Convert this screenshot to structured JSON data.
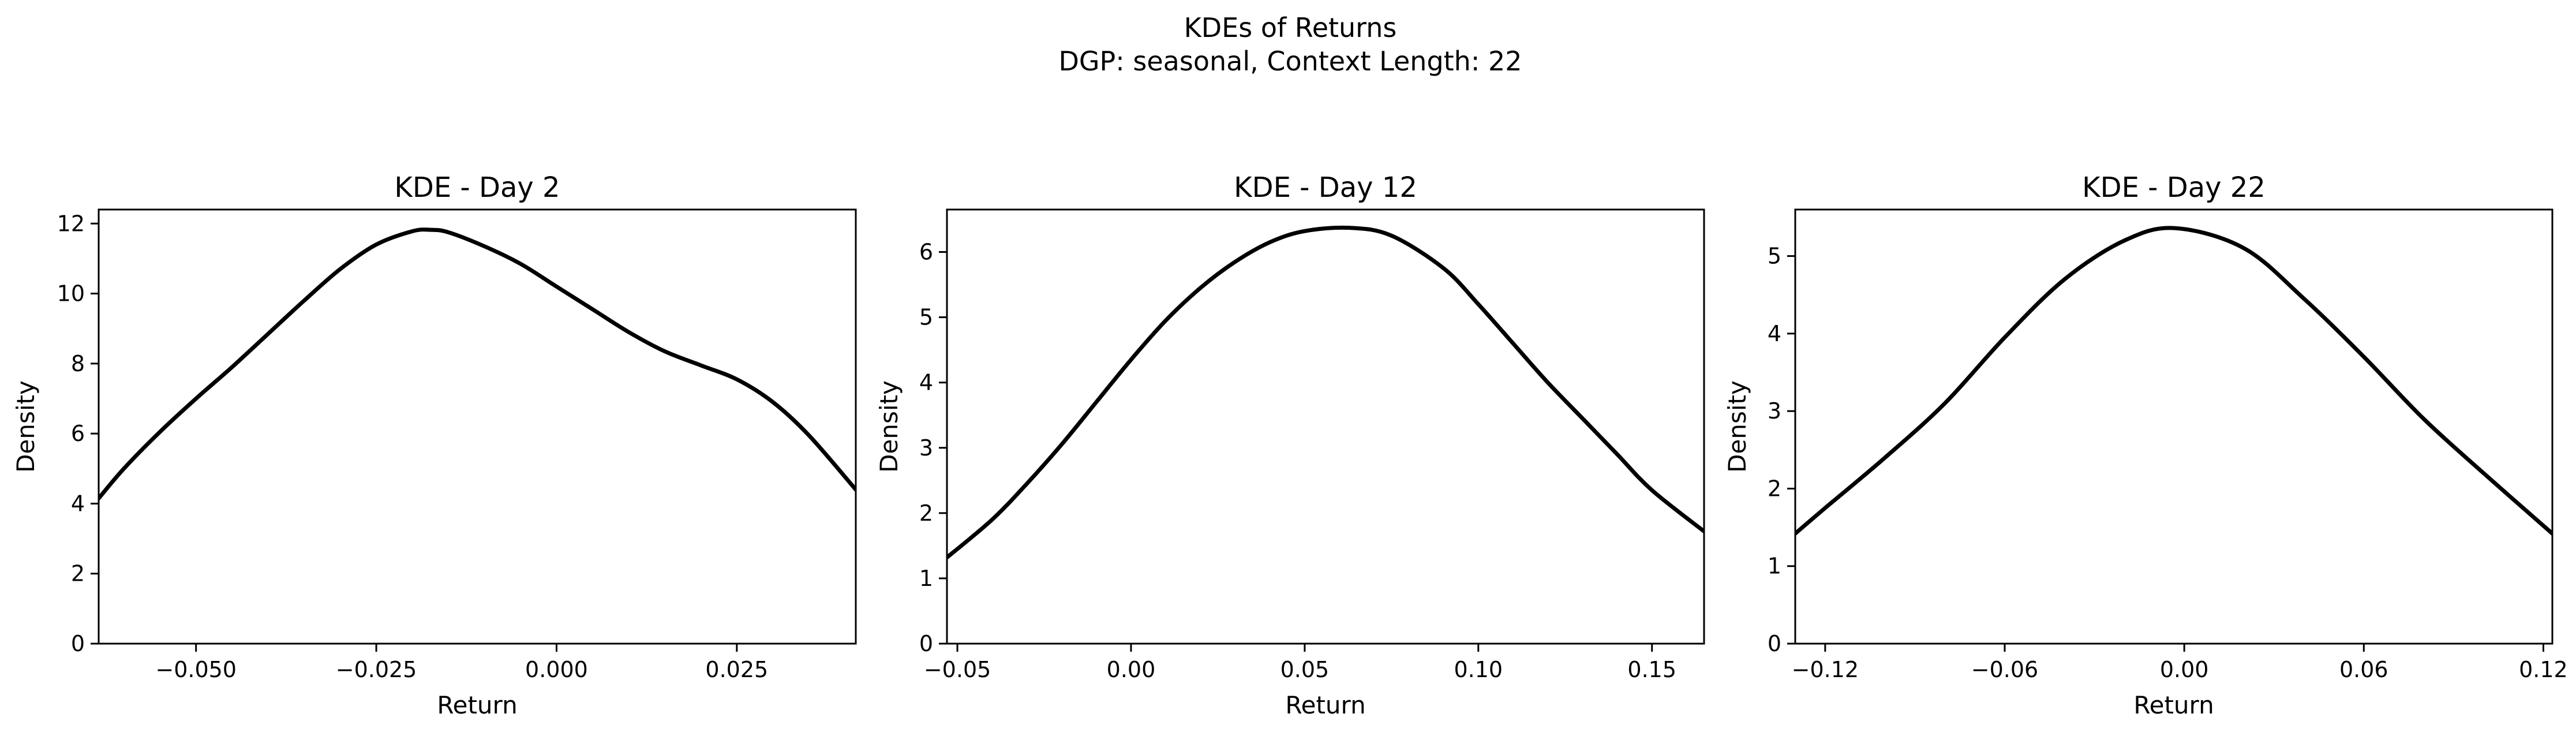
{
  "figure": {
    "title_line1": "KDEs of Returns",
    "title_line2": "DGP: seasonal, Context Length: 22"
  },
  "chart_data": [
    {
      "type": "line",
      "title": "KDE - Day 2",
      "xlabel": "Return",
      "ylabel": "Density",
      "xlim": [
        -0.0635,
        0.0415
      ],
      "ylim": [
        0,
        12.4
      ],
      "xticks": [
        {
          "value": -0.05,
          "label": "−0.050"
        },
        {
          "value": -0.025,
          "label": "−0.025"
        },
        {
          "value": 0.0,
          "label": "0.000"
        },
        {
          "value": 0.025,
          "label": "0.025"
        }
      ],
      "yticks": [
        {
          "value": 0,
          "label": "0"
        },
        {
          "value": 2,
          "label": "2"
        },
        {
          "value": 4,
          "label": "4"
        },
        {
          "value": 6,
          "label": "6"
        },
        {
          "value": 8,
          "label": "8"
        },
        {
          "value": 10,
          "label": "10"
        },
        {
          "value": 12,
          "label": "12"
        }
      ],
      "grid": false,
      "color": "#000000",
      "series": [
        {
          "x": [
            -0.0635,
            -0.06,
            -0.055,
            -0.05,
            -0.045,
            -0.04,
            -0.035,
            -0.03,
            -0.025,
            -0.02,
            -0.0175,
            -0.015,
            -0.01,
            -0.005,
            0.0,
            0.005,
            0.01,
            0.015,
            0.02,
            0.025,
            0.03,
            0.035,
            0.0415
          ],
          "y": [
            4.15,
            5.0,
            6.05,
            7.0,
            7.9,
            8.85,
            9.8,
            10.7,
            11.4,
            11.78,
            11.82,
            11.75,
            11.35,
            10.85,
            10.2,
            9.55,
            8.9,
            8.35,
            7.95,
            7.55,
            6.9,
            5.95,
            4.4
          ]
        }
      ]
    },
    {
      "type": "line",
      "title": "KDE - Day 12",
      "xlabel": "Return",
      "ylabel": "Density",
      "xlim": [
        -0.053,
        0.165
      ],
      "ylim": [
        0,
        6.65
      ],
      "xticks": [
        {
          "value": -0.05,
          "label": "−0.05"
        },
        {
          "value": 0.0,
          "label": "0.00"
        },
        {
          "value": 0.05,
          "label": "0.05"
        },
        {
          "value": 0.1,
          "label": "0.10"
        },
        {
          "value": 0.15,
          "label": "0.15"
        }
      ],
      "yticks": [
        {
          "value": 0,
          "label": "0"
        },
        {
          "value": 1,
          "label": "1"
        },
        {
          "value": 2,
          "label": "2"
        },
        {
          "value": 3,
          "label": "3"
        },
        {
          "value": 4,
          "label": "4"
        },
        {
          "value": 5,
          "label": "5"
        },
        {
          "value": 6,
          "label": "6"
        }
      ],
      "grid": false,
      "color": "#000000",
      "series": [
        {
          "x": [
            -0.053,
            -0.04,
            -0.03,
            -0.02,
            -0.01,
            0.0,
            0.01,
            0.02,
            0.03,
            0.04,
            0.05,
            0.063,
            0.075,
            0.09,
            0.1,
            0.11,
            0.12,
            0.13,
            0.14,
            0.15,
            0.165
          ],
          "y": [
            1.32,
            1.9,
            2.45,
            3.05,
            3.7,
            4.35,
            4.95,
            5.45,
            5.85,
            6.15,
            6.32,
            6.37,
            6.25,
            5.75,
            5.2,
            4.6,
            4.0,
            3.45,
            2.9,
            2.35,
            1.72
          ]
        }
      ]
    },
    {
      "type": "line",
      "title": "KDE - Day 22",
      "xlabel": "Return",
      "ylabel": "Density",
      "xlim": [
        -0.13,
        0.123
      ],
      "ylim": [
        0,
        5.6
      ],
      "xticks": [
        {
          "value": -0.12,
          "label": "−0.12"
        },
        {
          "value": -0.06,
          "label": "−0.06"
        },
        {
          "value": 0.0,
          "label": "0.00"
        },
        {
          "value": 0.06,
          "label": "0.06"
        },
        {
          "value": 0.12,
          "label": "0.12"
        }
      ],
      "yticks": [
        {
          "value": 0,
          "label": "0"
        },
        {
          "value": 1,
          "label": "1"
        },
        {
          "value": 2,
          "label": "2"
        },
        {
          "value": 3,
          "label": "3"
        },
        {
          "value": 4,
          "label": "4"
        },
        {
          "value": 5,
          "label": "5"
        }
      ],
      "grid": false,
      "color": "#000000",
      "series": [
        {
          "x": [
            -0.13,
            -0.12,
            -0.1,
            -0.08,
            -0.06,
            -0.04,
            -0.02,
            -0.003,
            0.02,
            0.04,
            0.06,
            0.08,
            0.1,
            0.123
          ],
          "y": [
            1.42,
            1.75,
            2.4,
            3.1,
            3.95,
            4.7,
            5.2,
            5.36,
            5.1,
            4.45,
            3.7,
            2.9,
            2.2,
            1.42
          ]
        }
      ]
    }
  ]
}
